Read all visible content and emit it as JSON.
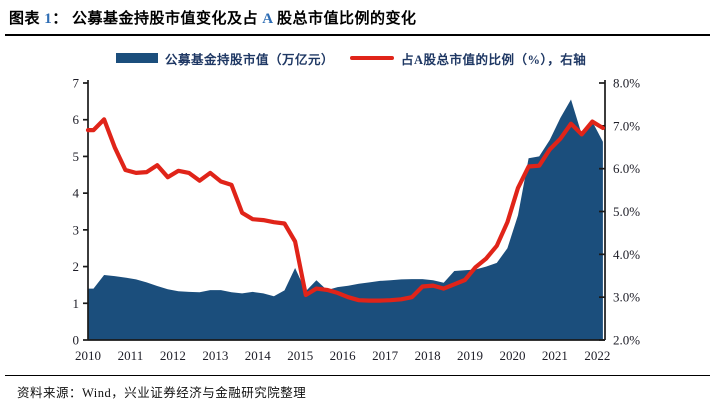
{
  "title": {
    "p0": "图表 ",
    "p1": "1",
    "p2": "： 公募基金持股市值变化及占 ",
    "p3": "A",
    "p4": " 股总市值比例的变化",
    "accent_color": "#2E6DB4"
  },
  "legend": {
    "text_color": "#1F3864",
    "items": [
      {
        "label": "公募基金持股市值（万亿元）",
        "swatch": "area",
        "color": "#1B4E7C"
      },
      {
        "label": "占A股总市值的比例（%），右轴",
        "swatch": "line",
        "color": "#E02419"
      }
    ]
  },
  "source": {
    "text": "资料来源：Wind，兴业证券经济与金融研究院整理"
  },
  "chart_data": {
    "type": "combo",
    "title": "公募基金持股市值变化及占A股总市值比例的变化",
    "x_unit": "quarter (decimal year, end of quarter)",
    "x": [
      2010.25,
      2010.5,
      2010.75,
      2011,
      2011.25,
      2011.5,
      2011.75,
      2012,
      2012.25,
      2012.5,
      2012.75,
      2013,
      2013.25,
      2013.5,
      2013.75,
      2014,
      2014.25,
      2014.5,
      2014.75,
      2015,
      2015.25,
      2015.5,
      2015.75,
      2016,
      2016.25,
      2016.5,
      2016.75,
      2017,
      2017.25,
      2017.5,
      2017.75,
      2018,
      2018.25,
      2018.5,
      2018.75,
      2019,
      2019.25,
      2019.5,
      2019.75,
      2020,
      2020.25,
      2020.5,
      2020.75,
      2021,
      2021.25,
      2021.5,
      2021.75,
      2022,
      2022.25
    ],
    "series": [
      {
        "name": "公募基金持股市值（万亿元）",
        "type": "area",
        "axis": "left",
        "color": "#1B4E7C",
        "values": [
          1.4,
          1.77,
          1.74,
          1.7,
          1.65,
          1.57,
          1.47,
          1.38,
          1.33,
          1.31,
          1.3,
          1.36,
          1.36,
          1.3,
          1.27,
          1.31,
          1.27,
          1.19,
          1.35,
          1.96,
          1.33,
          1.63,
          1.36,
          1.44,
          1.48,
          1.53,
          1.57,
          1.61,
          1.63,
          1.65,
          1.66,
          1.66,
          1.63,
          1.56,
          1.88,
          1.9,
          1.92,
          2.0,
          2.1,
          2.5,
          3.4,
          4.95,
          5.0,
          5.45,
          6.05,
          6.55,
          5.6,
          5.95,
          5.4
        ]
      },
      {
        "name": "占A股总市值的比例（%），右轴",
        "type": "line",
        "axis": "right",
        "color": "#E02419",
        "values": [
          6.9,
          7.15,
          6.5,
          5.97,
          5.9,
          5.92,
          6.08,
          5.8,
          5.95,
          5.9,
          5.72,
          5.9,
          5.7,
          5.62,
          4.97,
          4.82,
          4.8,
          4.75,
          4.72,
          4.3,
          3.05,
          3.2,
          3.17,
          3.1,
          3.0,
          2.93,
          2.92,
          2.92,
          2.93,
          2.95,
          3.0,
          3.25,
          3.27,
          3.2,
          3.3,
          3.4,
          3.7,
          3.9,
          4.2,
          4.75,
          5.55,
          6.05,
          6.07,
          6.45,
          6.7,
          7.05,
          6.8,
          7.1,
          6.95
        ]
      }
    ],
    "x_ticks": [
      "2010",
      "2011",
      "2012",
      "2013",
      "2014",
      "2015",
      "2016",
      "2017",
      "2018",
      "2019",
      "2020",
      "2021",
      "2022"
    ],
    "left_axis": {
      "min": 0,
      "max": 7,
      "ticks": [
        "0",
        "1",
        "2",
        "3",
        "4",
        "5",
        "6",
        "7"
      ]
    },
    "right_axis": {
      "min": 2,
      "max": 8,
      "ticks": [
        "2.0%",
        "3.0%",
        "4.0%",
        "5.0%",
        "6.0%",
        "7.0%",
        "8.0%"
      ]
    },
    "grid": false,
    "legend_position": "top",
    "tick_color": "#1D1D27",
    "axis_color": "#1A1A1A"
  }
}
